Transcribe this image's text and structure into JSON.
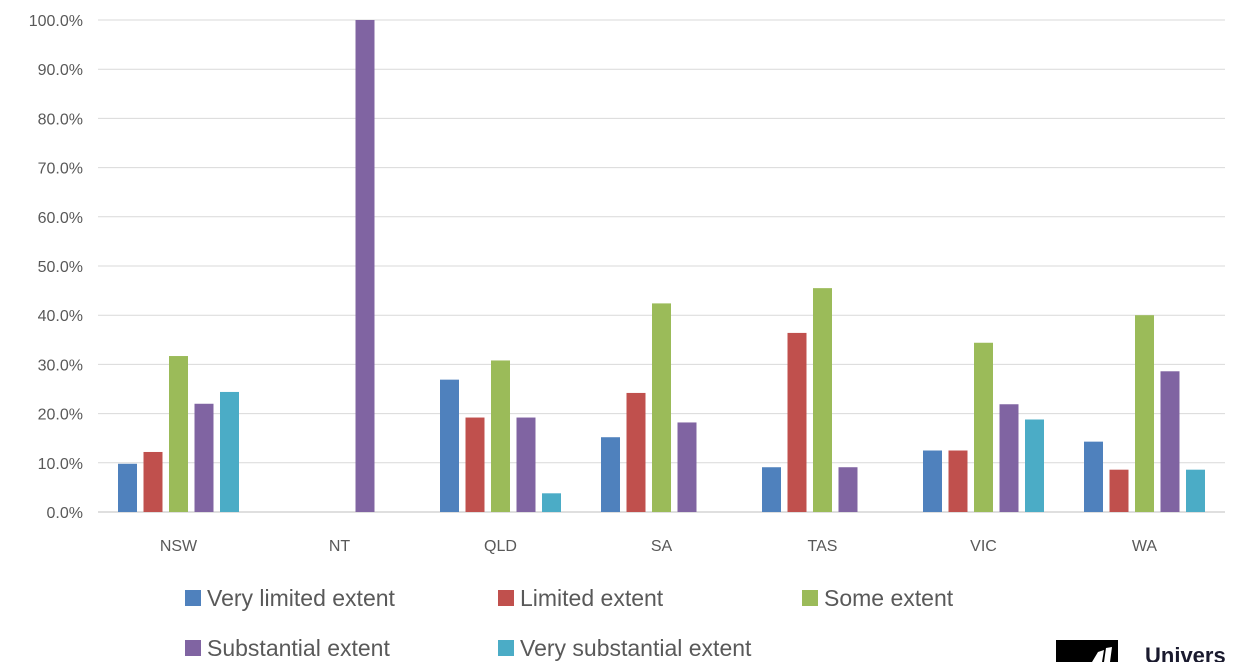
{
  "chart_data": {
    "type": "bar",
    "categories": [
      "NSW",
      "NT",
      "QLD",
      "SA",
      "TAS",
      "VIC",
      "WA"
    ],
    "series": [
      {
        "name": "Very limited extent",
        "color": "#4f81bd",
        "values": [
          9.8,
          0,
          26.9,
          15.2,
          9.1,
          12.5,
          14.3
        ]
      },
      {
        "name": "Limited extent",
        "color": "#c0504d",
        "values": [
          12.2,
          0,
          19.2,
          24.2,
          36.4,
          12.5,
          8.6
        ]
      },
      {
        "name": "Some extent",
        "color": "#9bbb59",
        "values": [
          31.7,
          0,
          30.8,
          42.4,
          45.5,
          34.4,
          40.0
        ]
      },
      {
        "name": "Substantial extent",
        "color": "#8064a2",
        "values": [
          22.0,
          100.0,
          19.2,
          18.2,
          9.1,
          21.9,
          28.6
        ]
      },
      {
        "name": "Very substantial extent",
        "color": "#4bacc6",
        "values": [
          24.4,
          0,
          3.8,
          0,
          0,
          18.8,
          8.6
        ]
      }
    ],
    "ylim": [
      0,
      100
    ],
    "yticks": [
      "0.0%",
      "10.0%",
      "20.0%",
      "30.0%",
      "40.0%",
      "50.0%",
      "60.0%",
      "70.0%",
      "80.0%",
      "90.0%",
      "100.0%"
    ],
    "grid": true,
    "legend_position": "bottom"
  },
  "logo": {
    "text": "Univers",
    "icon": "university-logo-icon"
  }
}
